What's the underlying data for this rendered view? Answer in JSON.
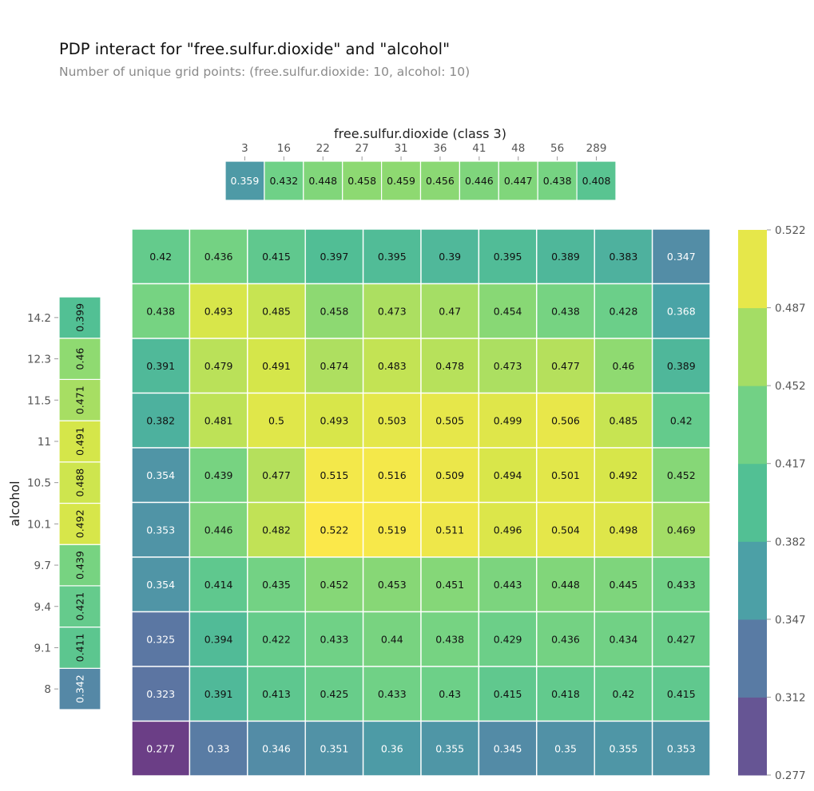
{
  "title": "PDP interact for \"free.sulfur.dioxide\" and \"alcohol\"",
  "subtitle": "Number of unique grid points: (free.sulfur.dioxide: 10, alcohol: 10)",
  "chart_data": {
    "type": "heatmap",
    "xlabel": "free.sulfur.dioxide (class 3)",
    "ylabel": "alcohol",
    "x_ticks": [
      "3",
      "16",
      "22",
      "27",
      "31",
      "36",
      "41",
      "48",
      "56",
      "289"
    ],
    "y_ticks": [
      "8",
      "9.1",
      "9.4",
      "9.7",
      "10.1",
      "10.5",
      "11",
      "11.5",
      "12.3",
      "14.2"
    ],
    "x_marginal": [
      0.359,
      0.432,
      0.448,
      0.458,
      0.459,
      0.456,
      0.446,
      0.447,
      0.438,
      0.408
    ],
    "y_marginal": [
      0.342,
      0.411,
      0.421,
      0.439,
      0.492,
      0.488,
      0.491,
      0.471,
      0.46,
      0.399
    ],
    "matrix_rows_top_to_bottom": [
      [
        0.42,
        0.436,
        0.415,
        0.397,
        0.395,
        0.39,
        0.395,
        0.389,
        0.383,
        0.347
      ],
      [
        0.438,
        0.493,
        0.485,
        0.458,
        0.473,
        0.47,
        0.454,
        0.438,
        0.428,
        0.368
      ],
      [
        0.391,
        0.479,
        0.491,
        0.474,
        0.483,
        0.478,
        0.473,
        0.477,
        0.46,
        0.389
      ],
      [
        0.382,
        0.481,
        0.5,
        0.493,
        0.503,
        0.505,
        0.499,
        0.506,
        0.485,
        0.42
      ],
      [
        0.354,
        0.439,
        0.477,
        0.515,
        0.516,
        0.509,
        0.494,
        0.501,
        0.492,
        0.452
      ],
      [
        0.353,
        0.446,
        0.482,
        0.522,
        0.519,
        0.511,
        0.496,
        0.504,
        0.498,
        0.469
      ],
      [
        0.354,
        0.414,
        0.435,
        0.452,
        0.453,
        0.451,
        0.443,
        0.448,
        0.445,
        0.433
      ],
      [
        0.325,
        0.394,
        0.422,
        0.433,
        0.44,
        0.438,
        0.429,
        0.436,
        0.434,
        0.427
      ],
      [
        0.323,
        0.391,
        0.413,
        0.425,
        0.433,
        0.43,
        0.415,
        0.418,
        0.42,
        0.415
      ],
      [
        0.277,
        0.33,
        0.346,
        0.351,
        0.36,
        0.355,
        0.345,
        0.35,
        0.355,
        0.353
      ]
    ],
    "colorbar_ticks": [
      "0.277",
      "0.312",
      "0.347",
      "0.382",
      "0.417",
      "0.452",
      "0.487",
      "0.522"
    ],
    "colormap": [
      "#6b3e86",
      "#62669e",
      "#5684a6",
      "#4aa5a6",
      "#52c094",
      "#6dd088",
      "#90da70",
      "#d6e64a",
      "#fbe84a"
    ],
    "vmin": 0.277,
    "vmax": 0.522,
    "grid": false,
    "legend": "colorbar-right"
  }
}
